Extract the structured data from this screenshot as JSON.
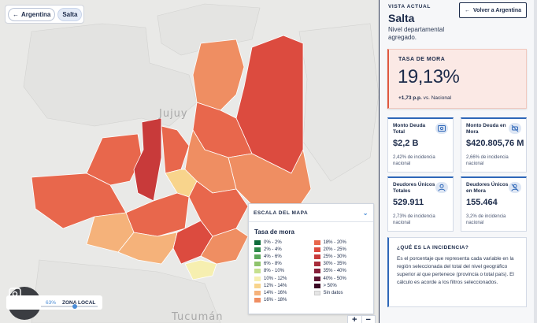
{
  "breadcrumb": {
    "back_label": "Argentina",
    "current_label": "Salta"
  },
  "map": {
    "labels": {
      "jujuy": "Jujuy",
      "tucuman": "Tucumán"
    }
  },
  "legend": {
    "header": "ESCALA DEL MAPA",
    "subtitle": "Tasa de mora",
    "left_items": [
      {
        "label": "0% - 2%",
        "color": "#0f6b3a"
      },
      {
        "label": "2% - 4%",
        "color": "#2e8a4a"
      },
      {
        "label": "4% - 6%",
        "color": "#5aa85a"
      },
      {
        "label": "6% - 8%",
        "color": "#8fc46c"
      },
      {
        "label": "8% - 10%",
        "color": "#c5e08e"
      },
      {
        "label": "10% - 12%",
        "color": "#f6efb0"
      },
      {
        "label": "12% - 14%",
        "color": "#f8d48c"
      },
      {
        "label": "14% - 16%",
        "color": "#f5b27a"
      },
      {
        "label": "16% - 18%",
        "color": "#ef8e62"
      }
    ],
    "right_items": [
      {
        "label": "18% - 20%",
        "color": "#e8674c"
      },
      {
        "label": "20% - 25%",
        "color": "#dc4b3f"
      },
      {
        "label": "25% - 30%",
        "color": "#c83a3a"
      },
      {
        "label": "30% - 35%",
        "color": "#a82c3a"
      },
      {
        "label": "35% - 40%",
        "color": "#86203a"
      },
      {
        "label": "40% - 50%",
        "color": "#5e1532"
      },
      {
        "label": "> 50%",
        "color": "#3a0a24"
      },
      {
        "label": "Sin datos",
        "color": "#e5e5e5"
      }
    ]
  },
  "zoom": {
    "percent": "63%",
    "label": "ZONA LOCAL",
    "plus": "+",
    "minus": "−"
  },
  "panel": {
    "eyebrow": "VISTA ACTUAL",
    "title": "Salta",
    "description": "Nivel departamental agregado.",
    "back_button": "Volver a Argentina",
    "rate": {
      "label": "TASA DE MORA",
      "value": "19,13%",
      "delta": "+1,73 p.p.",
      "delta_suffix": "vs. Nacional"
    },
    "stats": [
      {
        "label": "Monto Deuda Total",
        "value": "$2,2 B",
        "note": "2,42% de incidencia nacional",
        "icon": "money-icon"
      },
      {
        "label": "Monto Deuda en Mora",
        "value": "$420.805,76 M",
        "note": "2,66% de incidencia nacional",
        "icon": "overdue-money-icon"
      },
      {
        "label": "Deudores Únicos Totales",
        "value": "529.911",
        "note": "2,73% de incidencia nacional",
        "icon": "user-icon"
      },
      {
        "label": "Deudores Únicos en Mora",
        "value": "155.464",
        "note": "3,2% de incidencia nacional",
        "icon": "user-alert-icon"
      }
    ],
    "info": {
      "title": "¿QUÉ ES LA INCIDENCIA?",
      "body": "Es el porcentaje que representa cada variable en la región seleccionada del total del nivel geográfico superior al que pertenece (provincia o total país). El cálculo es acorde a los filtros seleccionados."
    }
  }
}
